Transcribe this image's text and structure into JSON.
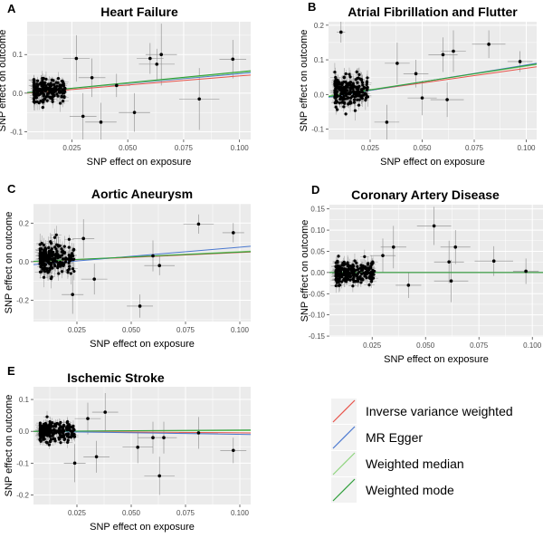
{
  "chart_data": [
    {
      "type": "scatter",
      "panel": "A",
      "title": "Heart Failure",
      "xlabel": "SNP effect on exposure",
      "ylabel": "SNP effect on outcome",
      "xlim": [
        0.005,
        0.105
      ],
      "ylim": [
        -0.12,
        0.185
      ],
      "xticks": [
        0.025,
        0.05,
        0.075,
        0.1
      ],
      "xtick_labels": [
        "0.025",
        "0.050",
        "0.075",
        "0.100"
      ],
      "yticks": [
        -0.1,
        0.0,
        0.1
      ],
      "ytick_labels": [
        "-0.1",
        "0.0",
        "0.1"
      ],
      "grid": true,
      "lines": [
        {
          "method": "Inverse variance weighted",
          "y_at_xmin": 0.0,
          "y_at_xmax": 0.047
        },
        {
          "method": "MR Egger",
          "y_at_xmin": 0.002,
          "y_at_xmax": 0.053
        },
        {
          "method": "Weighted median",
          "y_at_xmin": 0.001,
          "y_at_xmax": 0.056
        },
        {
          "method": "Weighted mode",
          "y_at_xmin": 0.0015,
          "y_at_xmax": 0.058
        }
      ],
      "cluster": {
        "n": 200,
        "x_range": [
          0.008,
          0.022
        ],
        "y_center": 0.01,
        "y_spread": 0.035
      },
      "points": [
        {
          "x": 0.027,
          "y": 0.09,
          "err_y": 0.06,
          "err_x": 0.006
        },
        {
          "x": 0.03,
          "y": -0.06,
          "err_y": 0.06,
          "err_x": 0.006
        },
        {
          "x": 0.034,
          "y": 0.04,
          "err_y": 0.05,
          "err_x": 0.006
        },
        {
          "x": 0.038,
          "y": -0.075,
          "err_y": 0.05,
          "err_x": 0.007
        },
        {
          "x": 0.045,
          "y": 0.02,
          "err_y": 0.03,
          "err_x": 0.006
        },
        {
          "x": 0.053,
          "y": -0.05,
          "err_y": 0.05,
          "err_x": 0.007
        },
        {
          "x": 0.06,
          "y": 0.09,
          "err_y": 0.04,
          "err_x": 0.006
        },
        {
          "x": 0.063,
          "y": 0.075,
          "err_y": 0.04,
          "err_x": 0.008
        },
        {
          "x": 0.065,
          "y": 0.1,
          "err_y": 0.08,
          "err_x": 0.007
        },
        {
          "x": 0.082,
          "y": -0.015,
          "err_y": 0.08,
          "err_x": 0.009
        },
        {
          "x": 0.097,
          "y": 0.088,
          "err_y": 0.05,
          "err_x": 0.006
        }
      ]
    },
    {
      "type": "scatter",
      "panel": "B",
      "title": "Atrial Fibrillation and Flutter",
      "xlabel": "SNP effect on exposure",
      "ylabel": "SNP effect on outcome",
      "xlim": [
        0.005,
        0.105
      ],
      "ylim": [
        -0.13,
        0.21
      ],
      "xticks": [
        0.025,
        0.05,
        0.075,
        0.1
      ],
      "xtick_labels": [
        "0.025",
        "0.050",
        "0.075",
        "0.100"
      ],
      "yticks": [
        -0.1,
        0.0,
        0.1,
        0.2
      ],
      "ytick_labels": [
        "-0.1",
        "0.0",
        "0.1",
        "0.2"
      ],
      "grid": true,
      "lines": [
        {
          "method": "Inverse variance weighted",
          "y_at_xmin": -0.005,
          "y_at_xmax": 0.08
        },
        {
          "method": "MR Egger",
          "y_at_xmin": -0.008,
          "y_at_xmax": 0.09
        },
        {
          "method": "Weighted median",
          "y_at_xmin": -0.004,
          "y_at_xmax": 0.086
        },
        {
          "method": "Weighted mode",
          "y_at_xmin": -0.006,
          "y_at_xmax": 0.088
        }
      ],
      "cluster": {
        "n": 220,
        "x_range": [
          0.008,
          0.024
        ],
        "y_center": 0.01,
        "y_spread": 0.045
      },
      "points": [
        {
          "x": 0.011,
          "y": 0.18,
          "err_y": 0.03,
          "err_x": 0.002
        },
        {
          "x": 0.033,
          "y": -0.08,
          "err_y": 0.05,
          "err_x": 0.006
        },
        {
          "x": 0.038,
          "y": 0.09,
          "err_y": 0.06,
          "err_x": 0.006
        },
        {
          "x": 0.047,
          "y": 0.06,
          "err_y": 0.04,
          "err_x": 0.006
        },
        {
          "x": 0.05,
          "y": -0.01,
          "err_y": 0.05,
          "err_x": 0.007
        },
        {
          "x": 0.06,
          "y": 0.115,
          "err_y": 0.05,
          "err_x": 0.007
        },
        {
          "x": 0.062,
          "y": -0.015,
          "err_y": 0.05,
          "err_x": 0.008
        },
        {
          "x": 0.065,
          "y": 0.125,
          "err_y": 0.06,
          "err_x": 0.006
        },
        {
          "x": 0.082,
          "y": 0.145,
          "err_y": 0.04,
          "err_x": 0.008
        },
        {
          "x": 0.097,
          "y": 0.095,
          "err_y": 0.03,
          "err_x": 0.006
        }
      ]
    },
    {
      "type": "scatter",
      "panel": "C",
      "title": "Aortic Aneurysm",
      "xlabel": "SNP effect on exposure",
      "ylabel": "SNP effect on outcome",
      "xlim": [
        0.005,
        0.105
      ],
      "ylim": [
        -0.31,
        0.3
      ],
      "xticks": [
        0.025,
        0.05,
        0.075,
        0.1
      ],
      "xtick_labels": [
        "0.025",
        "0.050",
        "0.075",
        "0.100"
      ],
      "yticks": [
        -0.2,
        0.0,
        0.2
      ],
      "ytick_labels": [
        "-0.2",
        "0.0",
        "0.2"
      ],
      "grid": true,
      "lines": [
        {
          "method": "Inverse variance weighted",
          "y_at_xmin": 0.0,
          "y_at_xmax": 0.05
        },
        {
          "method": "MR Egger",
          "y_at_xmin": -0.015,
          "y_at_xmax": 0.08
        },
        {
          "method": "Weighted median",
          "y_at_xmin": 0.0,
          "y_at_xmax": 0.055
        },
        {
          "method": "Weighted mode",
          "y_at_xmin": 0.002,
          "y_at_xmax": 0.052
        }
      ],
      "cluster": {
        "n": 220,
        "x_range": [
          0.008,
          0.024
        ],
        "y_center": 0.01,
        "y_spread": 0.09
      },
      "points": [
        {
          "x": 0.023,
          "y": -0.17,
          "err_y": 0.1,
          "err_x": 0.005
        },
        {
          "x": 0.028,
          "y": 0.12,
          "err_y": 0.1,
          "err_x": 0.005
        },
        {
          "x": 0.033,
          "y": -0.09,
          "err_y": 0.08,
          "err_x": 0.006
        },
        {
          "x": 0.054,
          "y": -0.23,
          "err_y": 0.06,
          "err_x": 0.006
        },
        {
          "x": 0.06,
          "y": 0.03,
          "err_y": 0.08,
          "err_x": 0.007
        },
        {
          "x": 0.063,
          "y": -0.02,
          "err_y": 0.05,
          "err_x": 0.007
        },
        {
          "x": 0.081,
          "y": 0.195,
          "err_y": 0.05,
          "err_x": 0.007
        },
        {
          "x": 0.097,
          "y": 0.15,
          "err_y": 0.05,
          "err_x": 0.005
        }
      ]
    },
    {
      "type": "scatter",
      "panel": "D",
      "title": "Coronary Artery Disease",
      "xlabel": "SNP effect on exposure",
      "ylabel": "SNP effect on outcome",
      "xlim": [
        0.005,
        0.105
      ],
      "ylim": [
        -0.152,
        0.16
      ],
      "xticks": [
        0.025,
        0.05,
        0.075,
        0.1
      ],
      "xtick_labels": [
        "0.025",
        "0.050",
        "0.075",
        "0.100"
      ],
      "yticks": [
        -0.15,
        -0.1,
        -0.05,
        0.0,
        0.05,
        0.1,
        0.15
      ],
      "ytick_labels": [
        "-0.15",
        "-0.10",
        "-0.05",
        "0.00",
        "0.05",
        "0.10",
        "0.15"
      ],
      "grid": true,
      "lines": [
        {
          "method": "Inverse variance weighted",
          "y_at_xmin": 0.0,
          "y_at_xmax": 0.0
        },
        {
          "method": "MR Egger",
          "y_at_xmin": 0.0,
          "y_at_xmax": 0.0
        },
        {
          "method": "Weighted median",
          "y_at_xmin": 0.0,
          "y_at_xmax": 0.0
        },
        {
          "method": "Weighted mode",
          "y_at_xmin": 0.0,
          "y_at_xmax": 0.0
        }
      ],
      "cluster": {
        "n": 240,
        "x_range": [
          0.008,
          0.026
        ],
        "y_center": 0.0,
        "y_spread": 0.03
      },
      "points": [
        {
          "x": 0.03,
          "y": 0.04,
          "err_y": 0.04,
          "err_x": 0.006
        },
        {
          "x": 0.035,
          "y": 0.06,
          "err_y": 0.05,
          "err_x": 0.006
        },
        {
          "x": 0.042,
          "y": -0.03,
          "err_y": 0.03,
          "err_x": 0.006
        },
        {
          "x": 0.054,
          "y": 0.11,
          "err_y": 0.045,
          "err_x": 0.008
        },
        {
          "x": 0.061,
          "y": 0.025,
          "err_y": 0.05,
          "err_x": 0.007
        },
        {
          "x": 0.062,
          "y": -0.02,
          "err_y": 0.05,
          "err_x": 0.008
        },
        {
          "x": 0.064,
          "y": 0.06,
          "err_y": 0.04,
          "err_x": 0.007
        },
        {
          "x": 0.082,
          "y": 0.027,
          "err_y": 0.035,
          "err_x": 0.009
        },
        {
          "x": 0.097,
          "y": 0.003,
          "err_y": 0.03,
          "err_x": 0.006
        }
      ]
    },
    {
      "type": "scatter",
      "panel": "E",
      "title": "Ischemic Stroke",
      "xlabel": "SNP effect on exposure",
      "ylabel": "SNP effect on outcome",
      "xlim": [
        0.005,
        0.105
      ],
      "ylim": [
        -0.23,
        0.14
      ],
      "xticks": [
        0.025,
        0.05,
        0.075,
        0.1
      ],
      "xtick_labels": [
        "0.025",
        "0.050",
        "0.075",
        "0.100"
      ],
      "yticks": [
        -0.2,
        -0.1,
        0.0,
        0.1
      ],
      "ytick_labels": [
        "-0.2",
        "-0.1",
        "0.0",
        "0.1"
      ],
      "grid": true,
      "lines": [
        {
          "method": "Inverse variance weighted",
          "y_at_xmin": 0.0,
          "y_at_xmax": -0.005
        },
        {
          "method": "MR Egger",
          "y_at_xmin": 0.0,
          "y_at_xmax": -0.01
        },
        {
          "method": "Weighted median",
          "y_at_xmin": 0.0,
          "y_at_xmax": 0.002
        },
        {
          "method": "Weighted mode",
          "y_at_xmin": 0.0,
          "y_at_xmax": 0.004
        }
      ],
      "cluster": {
        "n": 230,
        "x_range": [
          0.008,
          0.024
        ],
        "y_center": 0.0,
        "y_spread": 0.03
      },
      "points": [
        {
          "x": 0.024,
          "y": -0.1,
          "err_y": 0.06,
          "err_x": 0.005
        },
        {
          "x": 0.03,
          "y": 0.04,
          "err_y": 0.05,
          "err_x": 0.006
        },
        {
          "x": 0.034,
          "y": -0.08,
          "err_y": 0.05,
          "err_x": 0.006
        },
        {
          "x": 0.038,
          "y": 0.06,
          "err_y": 0.06,
          "err_x": 0.006
        },
        {
          "x": 0.053,
          "y": -0.05,
          "err_y": 0.05,
          "err_x": 0.007
        },
        {
          "x": 0.06,
          "y": -0.02,
          "err_y": 0.05,
          "err_x": 0.007
        },
        {
          "x": 0.063,
          "y": -0.14,
          "err_y": 0.06,
          "err_x": 0.007
        },
        {
          "x": 0.065,
          "y": -0.02,
          "err_y": 0.05,
          "err_x": 0.006
        },
        {
          "x": 0.081,
          "y": -0.005,
          "err_y": 0.05,
          "err_x": 0.009
        },
        {
          "x": 0.097,
          "y": -0.06,
          "err_y": 0.04,
          "err_x": 0.006
        }
      ]
    }
  ],
  "legend": {
    "items": [
      {
        "label": "Inverse variance weighted",
        "color": "#e8534a"
      },
      {
        "label": "MR Egger",
        "color": "#4a78d0"
      },
      {
        "label": "Weighted median",
        "color": "#8fd47e"
      },
      {
        "label": "Weighted mode",
        "color": "#2e9e3a"
      }
    ]
  }
}
